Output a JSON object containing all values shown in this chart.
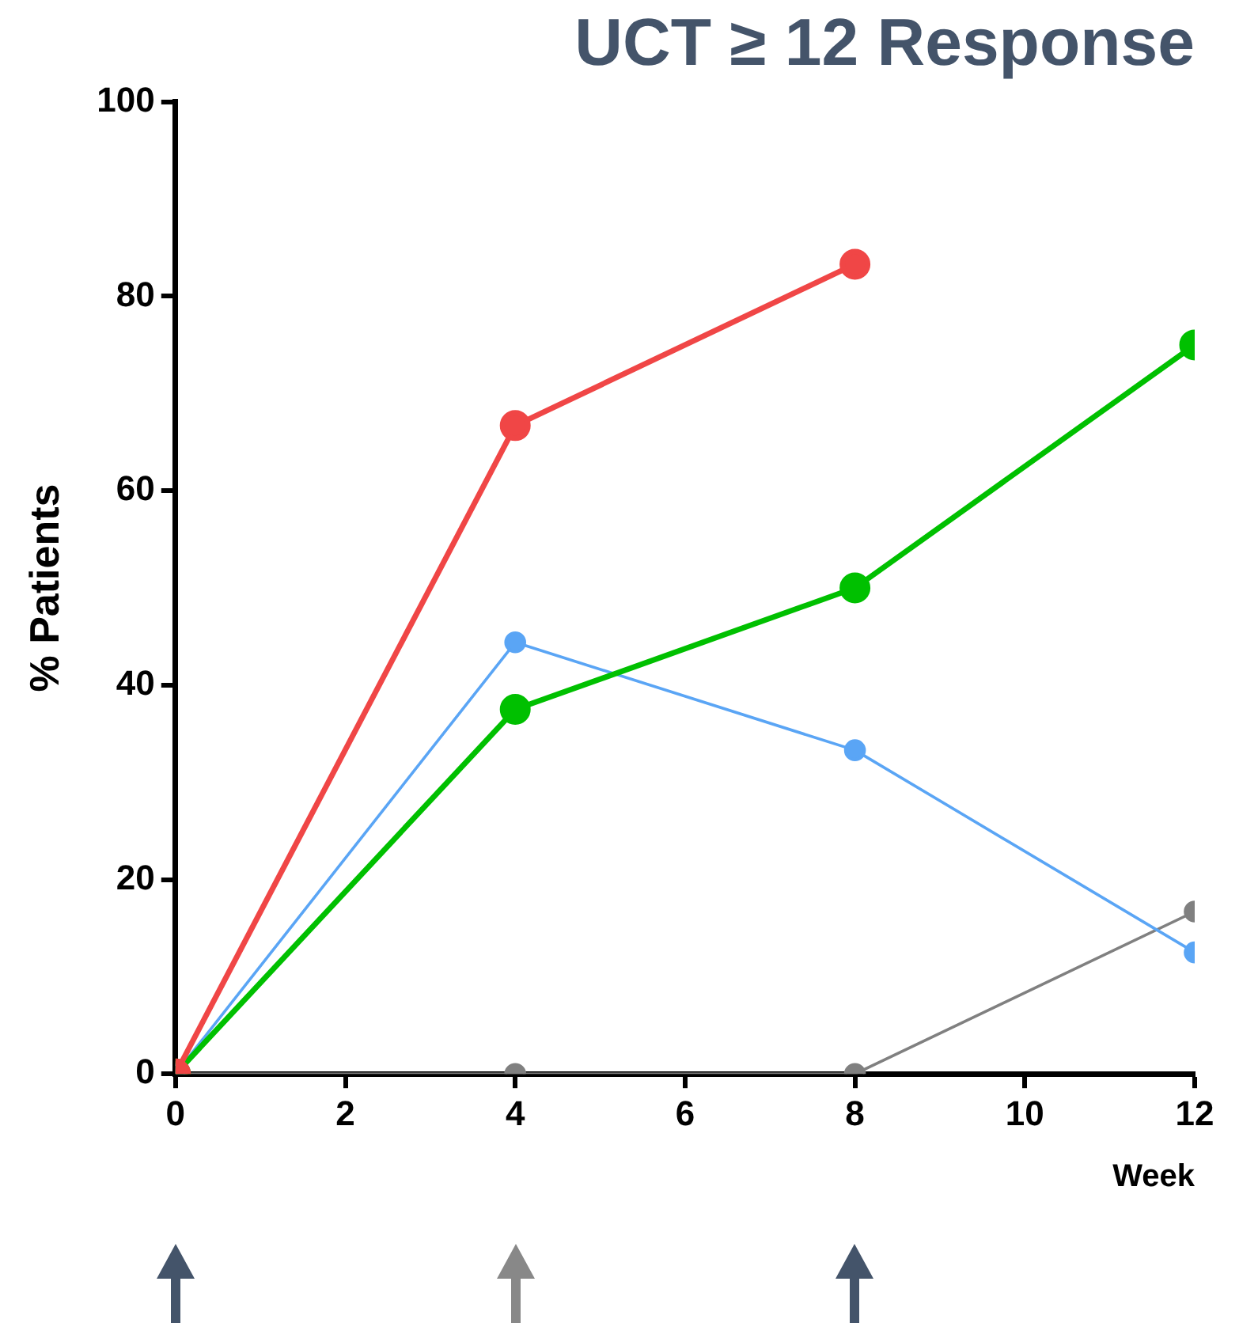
{
  "chart_data": {
    "type": "line",
    "title": "UCT ≥ 12 Response",
    "xlabel": "Week",
    "ylabel": "% Patients",
    "x": [
      0,
      4,
      8,
      12
    ],
    "series": [
      {
        "color": "#f04646",
        "values": [
          0,
          66.7,
          83.3,
          null
        ]
      },
      {
        "color": "#00c000",
        "values": [
          0,
          37.5,
          50,
          75
        ]
      },
      {
        "color": "#5aa5f5",
        "values": [
          0,
          44.4,
          33.3,
          12.5
        ]
      },
      {
        "color": "#808080",
        "values": [
          0,
          0,
          0,
          16.7
        ]
      }
    ],
    "xlim": [
      0,
      12
    ],
    "xticks": [
      0,
      2,
      4,
      6,
      8,
      10,
      12
    ],
    "ylim": [
      0,
      100
    ],
    "yticks": [
      0,
      20,
      40,
      60,
      80,
      100
    ],
    "grid": false,
    "legend": false,
    "marker": "circle",
    "line_style": "solid"
  }
}
